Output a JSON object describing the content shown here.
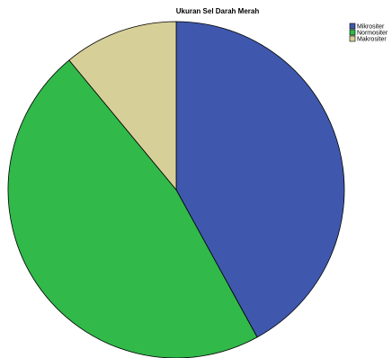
{
  "chart_data": {
    "type": "pie",
    "title": "Ukuran Sel Darah Merah",
    "legend_position": "top-right",
    "slices": [
      {
        "label": "Mikrositer",
        "value": 42,
        "color": "#3f58ad"
      },
      {
        "label": "Normositer",
        "value": 47,
        "color": "#31b94a"
      },
      {
        "label": "Makrositer",
        "value": 11,
        "color": "#d6cf98"
      }
    ]
  }
}
